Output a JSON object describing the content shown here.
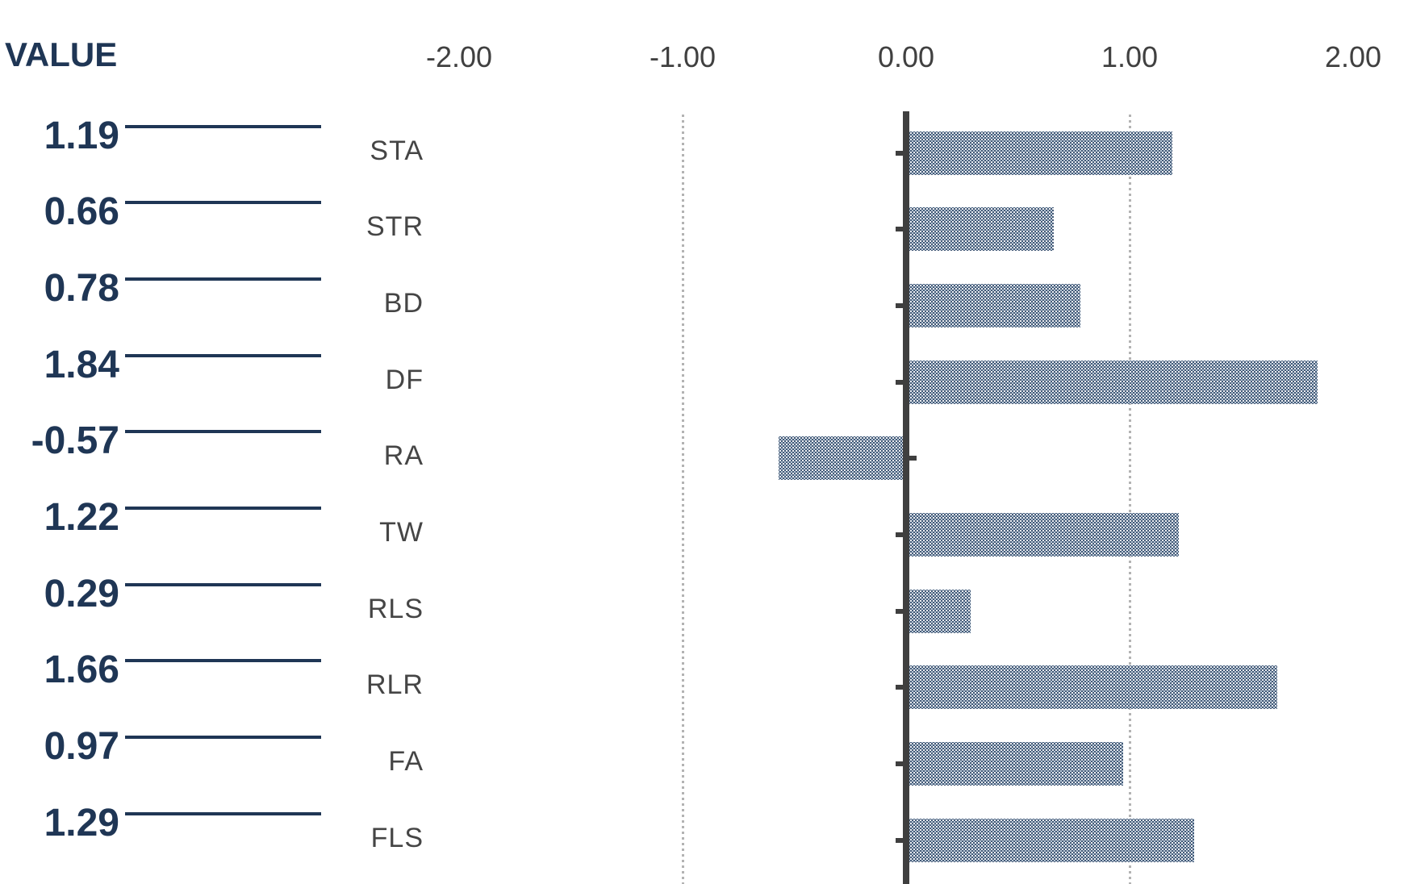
{
  "header": {
    "value_column_label": "VALUE"
  },
  "chart_data": {
    "type": "bar",
    "orientation": "horizontal",
    "title": "",
    "value_axis_position": "top",
    "categories": [
      "STA",
      "STR",
      "BD",
      "DF",
      "RA",
      "TW",
      "RLS",
      "RLR",
      "FA",
      "FLS"
    ],
    "values": [
      1.19,
      0.66,
      0.78,
      1.84,
      -0.57,
      1.22,
      0.29,
      1.66,
      0.97,
      1.29
    ],
    "value_labels": [
      "1.19",
      "0.66",
      "0.78",
      "1.84",
      "-0.57",
      "1.22",
      "0.29",
      "1.66",
      "0.97",
      "1.29"
    ],
    "x_tick_labels": [
      "-2.00",
      "-1.00",
      "0.00",
      "1.00",
      "2.00"
    ],
    "x_tick_values": [
      -2,
      -1,
      0,
      1,
      2
    ],
    "xlim": [
      -2,
      2
    ],
    "gridline_values": [
      -1,
      1
    ],
    "grid": "vertical-dotted",
    "legend": "none",
    "colors": {
      "bar_fill": "#1f3a5c",
      "bar_pattern_dot": "#ffffff",
      "zero_axis": "#3f3f3f",
      "category_axis_tick": "#3f3f3f",
      "gridline": "#b3b3b3",
      "value_label_text": "#1f3655",
      "separator_line": "#1f3655",
      "category_label_text": "#454545",
      "axis_tick_label_text": "#404040",
      "background": "#ffffff"
    }
  }
}
